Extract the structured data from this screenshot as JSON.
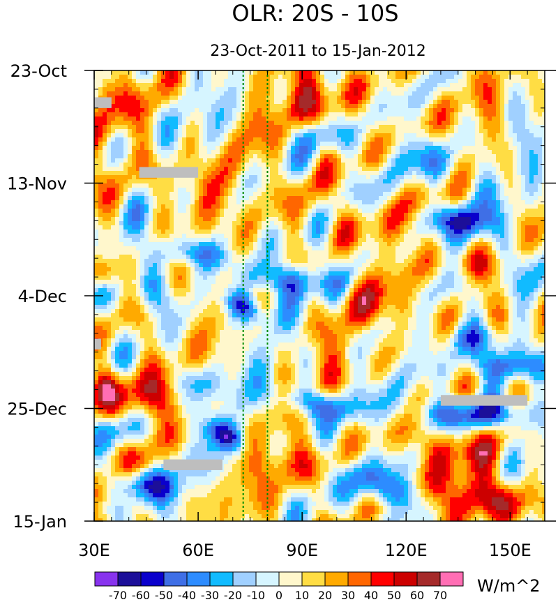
{
  "chart_data": {
    "type": "heatmap",
    "title": "OLR: 20S - 10S",
    "subtitle": "23-Oct-2011 to 15-Jan-2012",
    "x_axis": {
      "range": [
        30,
        160
      ],
      "ticks": [
        {
          "value": 30,
          "label": "30E"
        },
        {
          "value": 60,
          "label": "60E"
        },
        {
          "value": 90,
          "label": "90E"
        },
        {
          "value": 120,
          "label": "120E"
        },
        {
          "value": 150,
          "label": "150E"
        }
      ],
      "minor_step": 5
    },
    "y_axis": {
      "range_days": [
        0,
        84
      ],
      "direction": "top-to-bottom",
      "ticks": [
        {
          "day": 0,
          "label": "23-Oct"
        },
        {
          "day": 21,
          "label": "13-Nov"
        },
        {
          "day": 42,
          "label": "4-Dec"
        },
        {
          "day": 63,
          "label": "25-Dec"
        },
        {
          "day": 84,
          "label": "15-Jan"
        }
      ],
      "minor_step_days": 3.5
    },
    "reference_lines_lon": [
      73,
      80
    ],
    "reference_line_color": "#008a00",
    "missing_color": "#bebebe",
    "missing_regions": [
      {
        "lon": [
          30,
          35
        ],
        "day": [
          5.0,
          7.0
        ]
      },
      {
        "lon": [
          43,
          60
        ],
        "day": [
          18.0,
          20.0
        ]
      },
      {
        "lon": [
          30,
          32
        ],
        "day": [
          50.0,
          52.0
        ]
      },
      {
        "lon": [
          130,
          155
        ],
        "day": [
          60.5,
          62.5
        ]
      },
      {
        "lon": [
          50,
          67
        ],
        "day": [
          72.5,
          74.5
        ]
      }
    ],
    "colorbar": {
      "units": "W/m^2",
      "levels": [
        -70,
        -60,
        -50,
        -40,
        -30,
        -20,
        -10,
        0,
        10,
        20,
        30,
        40,
        50,
        60,
        70
      ],
      "colors": [
        "#8833ee",
        "#1c0f99",
        "#0a00cc",
        "#3f6fe6",
        "#2d8cff",
        "#11bbff",
        "#a0d0ff",
        "#d6f5ff",
        "#fff7cc",
        "#ffdd44",
        "#ffaa00",
        "#ff6600",
        "#ff0000",
        "#cc0000",
        "#a52a2a",
        "#ff6eb4"
      ]
    },
    "features": [
      {
        "lon": 73,
        "day": 44,
        "value": -60,
        "slon": 5,
        "sday": 3,
        "drift": 0.9
      },
      {
        "lon": 85,
        "day": 39,
        "value": -45,
        "slon": 12,
        "sday": 3,
        "drift": 1.0
      },
      {
        "lon": 60,
        "day": 34,
        "value": -45,
        "slon": 10,
        "sday": 3,
        "drift": 1.0
      },
      {
        "lon": 68,
        "day": 68,
        "value": -60,
        "slon": 5,
        "sday": 3,
        "drift": 0.9
      },
      {
        "lon": 93,
        "day": 62,
        "value": -55,
        "slon": 10,
        "sday": 3,
        "drift": 1.0
      },
      {
        "lon": 115,
        "day": 78,
        "value": -55,
        "slon": 8,
        "sday": 4,
        "drift": 1.1
      },
      {
        "lon": 43,
        "day": 77,
        "value": -55,
        "slon": 8,
        "sday": 3,
        "drift": 0.6
      },
      {
        "lon": 140,
        "day": 64,
        "value": -60,
        "slon": 18,
        "sday": 3,
        "drift": 0.2
      },
      {
        "lon": 150,
        "day": 55,
        "value": -55,
        "slon": 12,
        "sday": 3,
        "drift": 0.2
      },
      {
        "lon": 140,
        "day": 50,
        "value": -40,
        "slon": 10,
        "sday": 3,
        "drift": 0.2
      },
      {
        "lon": 135,
        "day": 28,
        "value": -55,
        "slon": 10,
        "sday": 3,
        "drift": 0.5
      },
      {
        "lon": 128,
        "day": 17,
        "value": -40,
        "slon": 8,
        "sday": 5,
        "drift": 0.5
      },
      {
        "lon": 155,
        "day": 37,
        "value": -45,
        "slon": 6,
        "sday": 5,
        "drift": 0.0
      },
      {
        "lon": 48,
        "day": 42,
        "value": -30,
        "slon": 8,
        "sday": 4,
        "drift": 0.6
      },
      {
        "lon": 36,
        "day": 67,
        "value": -30,
        "slon": 6,
        "sday": 3,
        "drift": 0.0
      },
      {
        "lon": 95,
        "day": 12,
        "value": -20,
        "slon": 10,
        "sday": 3,
        "drift": 0.5
      },
      {
        "lon": 60,
        "day": 58,
        "value": -25,
        "slon": 8,
        "sday": 3,
        "drift": 0.5
      },
      {
        "lon": 32,
        "day": 3,
        "value": 50,
        "slon": 4,
        "sday": 4,
        "drift": 0.0
      },
      {
        "lon": 33,
        "day": 38,
        "value": 50,
        "slon": 4,
        "sday": 3,
        "drift": 0.0
      },
      {
        "lon": 33,
        "day": 59,
        "value": 55,
        "slon": 4,
        "sday": 4,
        "drift": 0.0
      },
      {
        "lon": 46,
        "day": 61,
        "value": 45,
        "slon": 6,
        "sday": 4,
        "drift": 0.0
      },
      {
        "lon": 145,
        "day": 80,
        "value": 60,
        "slon": 14,
        "sday": 4,
        "drift": 0.0
      },
      {
        "lon": 130,
        "day": 70,
        "value": 35,
        "slon": 12,
        "sday": 4,
        "drift": 0.0
      },
      {
        "lon": 95,
        "day": 5,
        "value": 25,
        "slon": 15,
        "sday": 6,
        "drift": 0.3
      },
      {
        "lon": 140,
        "day": 36,
        "value": 30,
        "slon": 12,
        "sday": 3,
        "drift": 0.2
      },
      {
        "lon": 85,
        "day": 73,
        "value": 20,
        "slon": 10,
        "sday": 4,
        "drift": 0.4
      },
      {
        "lon": 120,
        "day": 45,
        "value": 25,
        "slon": 12,
        "sday": 4,
        "drift": 0.2
      },
      {
        "lon": 55,
        "day": 20,
        "value": 20,
        "slon": 12,
        "sday": 6,
        "drift": 0.4
      },
      {
        "lon": 100,
        "day": 27,
        "value": 20,
        "slon": 10,
        "sday": 5,
        "drift": 0.3
      }
    ]
  }
}
